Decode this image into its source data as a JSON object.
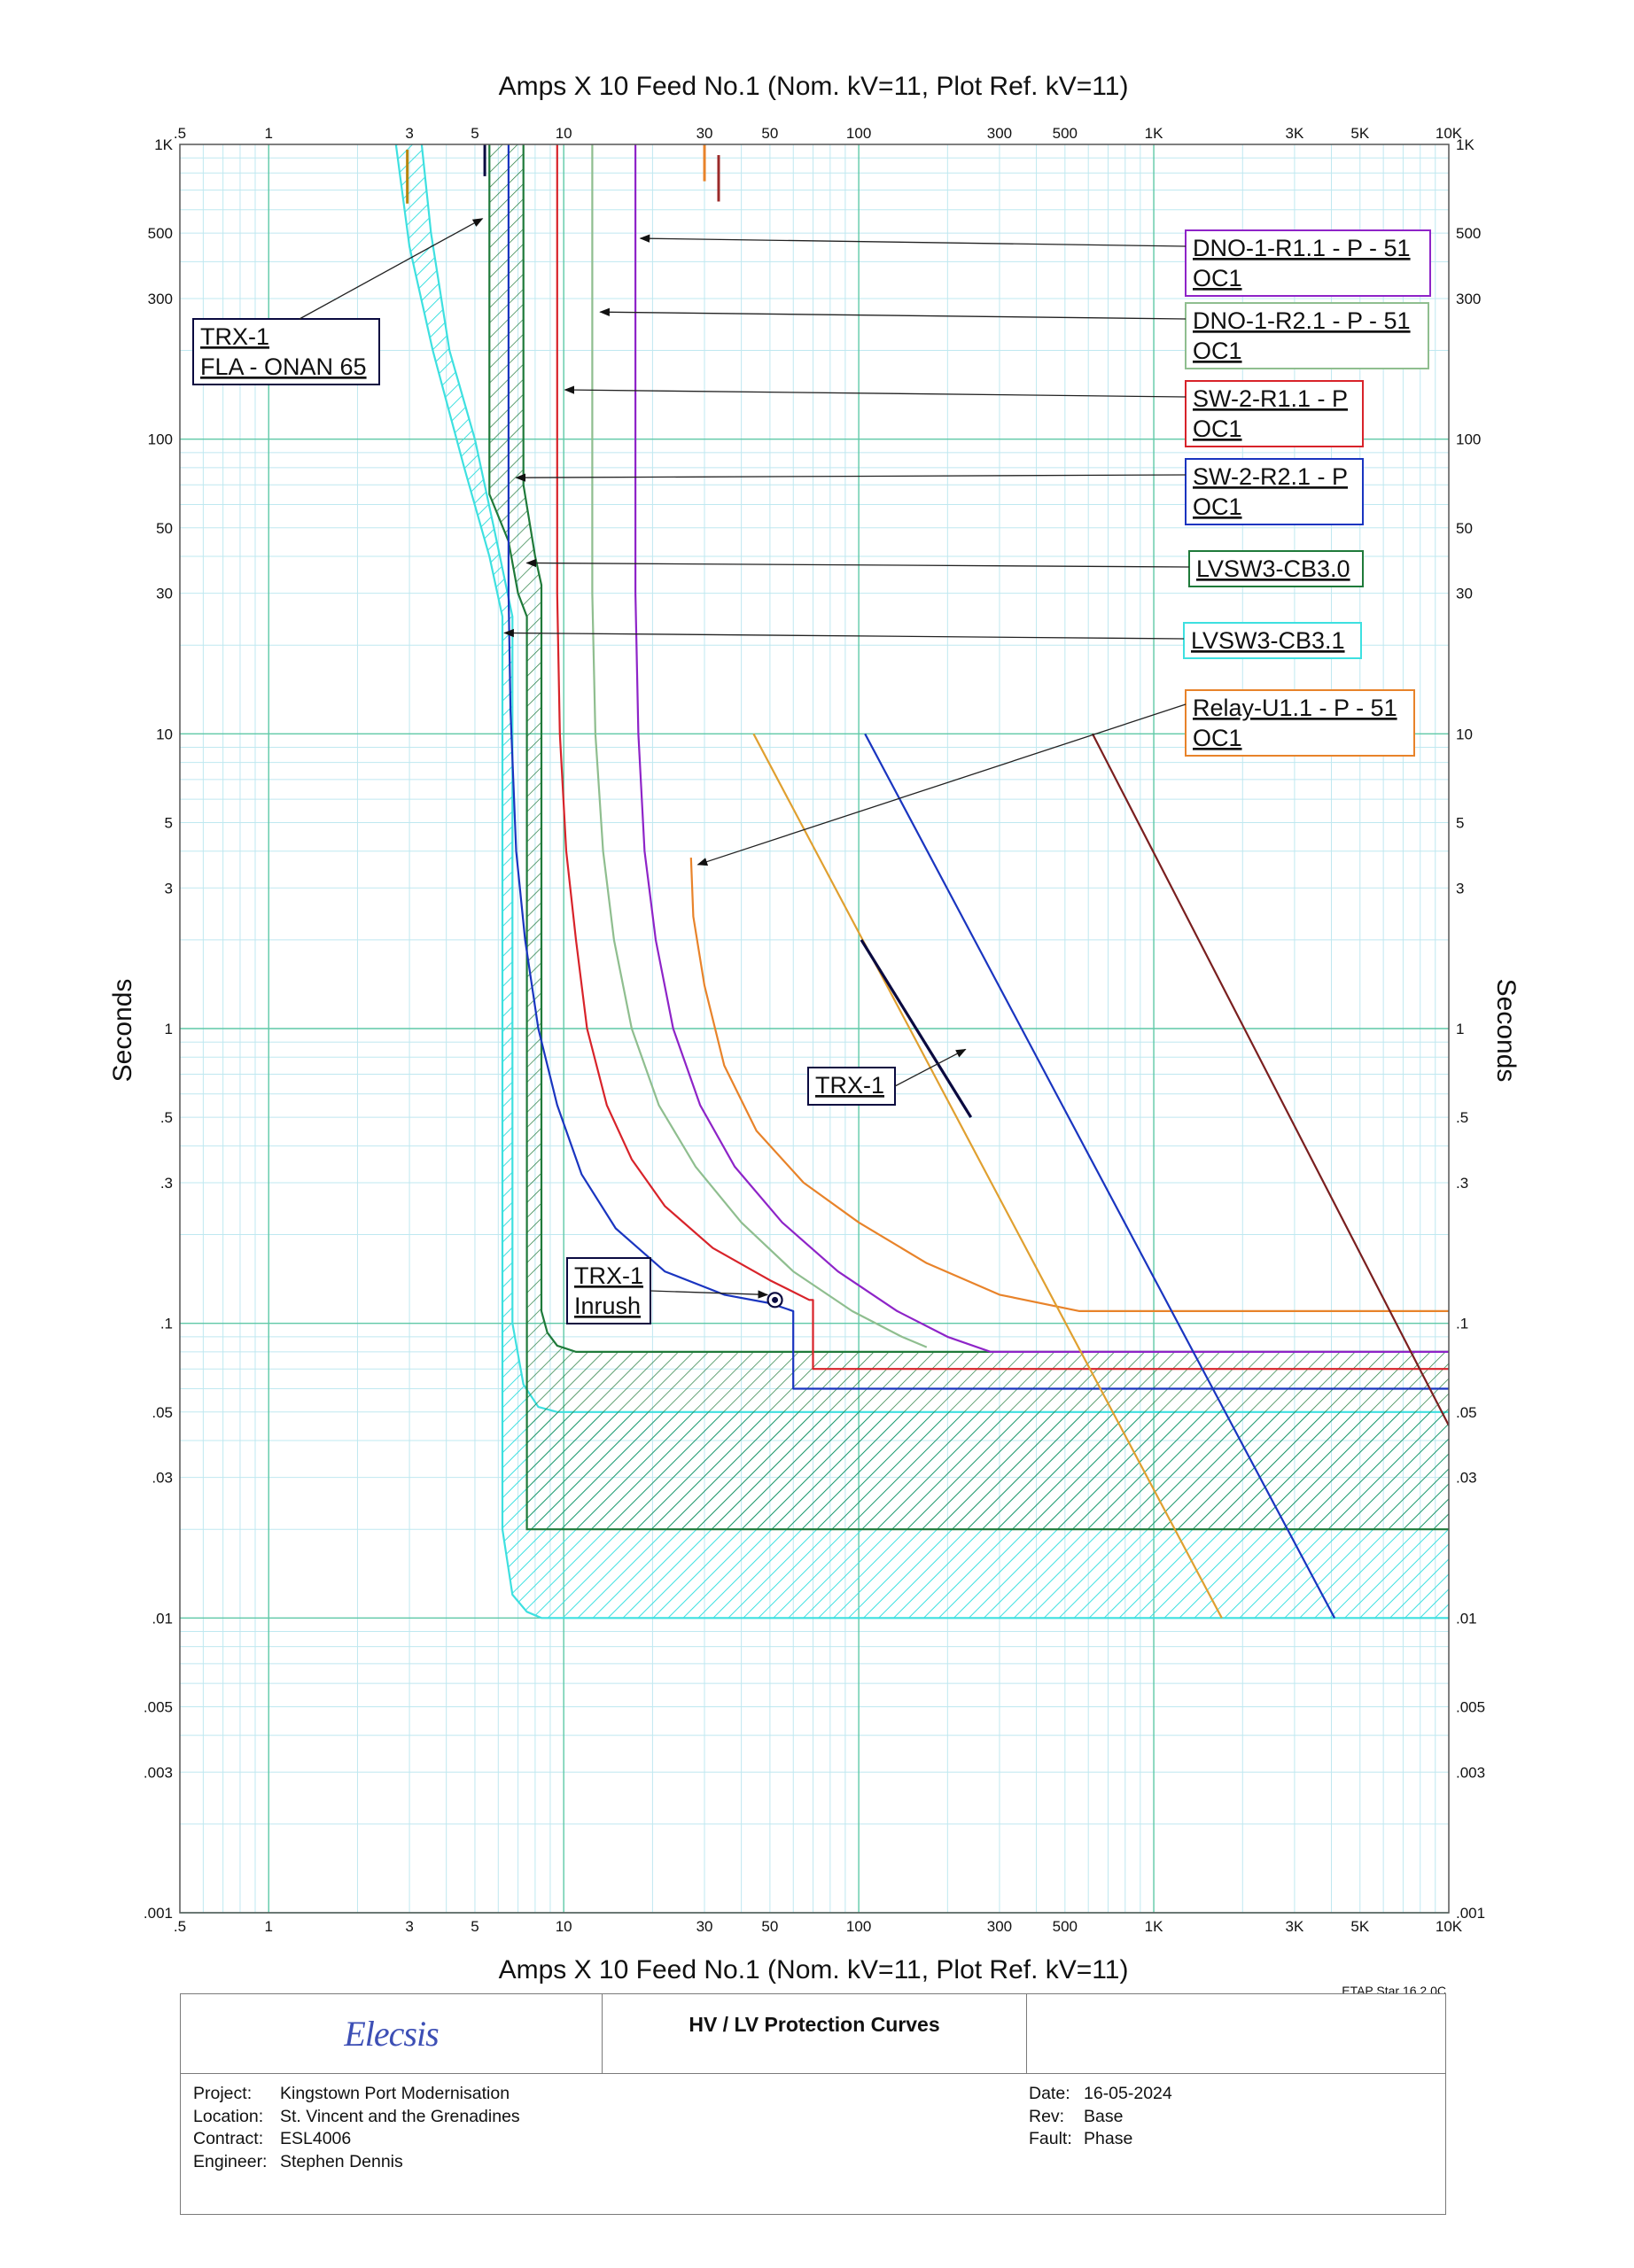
{
  "chart_data": {
    "type": "line",
    "title": "Amps  X  10   Feed No.1 (Nom. kV=11, Plot Ref. kV=11)",
    "xlabel": "Amps  X  10   Feed No.1 (Nom. kV=11, Plot Ref. kV=11)",
    "ylabel": "Seconds",
    "x_scale": "log",
    "y_scale": "log",
    "xlim": [
      0.5,
      10000
    ],
    "ylim": [
      0.001,
      1000
    ],
    "grid": true,
    "x_ticks": [
      {
        "v": 0.5,
        "t": ".5"
      },
      {
        "v": 1,
        "t": "1"
      },
      {
        "v": 3,
        "t": "3"
      },
      {
        "v": 5,
        "t": "5"
      },
      {
        "v": 10,
        "t": "10"
      },
      {
        "v": 30,
        "t": "30"
      },
      {
        "v": 50,
        "t": "50"
      },
      {
        "v": 100,
        "t": "100"
      },
      {
        "v": 300,
        "t": "300"
      },
      {
        "v": 500,
        "t": "500"
      },
      {
        "v": 1000,
        "t": "1K"
      },
      {
        "v": 3000,
        "t": "3K"
      },
      {
        "v": 5000,
        "t": "5K"
      },
      {
        "v": 10000,
        "t": "10K"
      }
    ],
    "y_ticks": [
      {
        "v": 0.001,
        "t": ".001"
      },
      {
        "v": 0.003,
        "t": ".003"
      },
      {
        "v": 0.005,
        "t": ".005"
      },
      {
        "v": 0.01,
        "t": ".01"
      },
      {
        "v": 0.03,
        "t": ".03"
      },
      {
        "v": 0.05,
        "t": ".05"
      },
      {
        "v": 0.1,
        "t": ".1"
      },
      {
        "v": 0.3,
        "t": ".3"
      },
      {
        "v": 0.5,
        "t": ".5"
      },
      {
        "v": 1,
        "t": "1"
      },
      {
        "v": 3,
        "t": "3"
      },
      {
        "v": 5,
        "t": "5"
      },
      {
        "v": 10,
        "t": "10"
      },
      {
        "v": 30,
        "t": "30"
      },
      {
        "v": 50,
        "t": "50"
      },
      {
        "v": 100,
        "t": "100"
      },
      {
        "v": 300,
        "t": "300"
      },
      {
        "v": 500,
        "t": "500"
      },
      {
        "v": 1000,
        "t": "1K"
      }
    ],
    "bands": [
      {
        "name": "LVSW3-CB3.1",
        "color": "#3ee0e0",
        "outer": [
          [
            2.7,
            1000
          ],
          [
            3.0,
            450
          ],
          [
            3.6,
            200
          ],
          [
            4.6,
            80
          ],
          [
            5.6,
            40
          ],
          [
            6.2,
            25
          ],
          [
            6.2,
            0.02
          ],
          [
            6.7,
            0.012
          ],
          [
            7.5,
            0.0105
          ],
          [
            8.4,
            0.01
          ],
          [
            10000,
            0.01
          ]
        ],
        "inner": [
          [
            3.3,
            1000
          ],
          [
            3.55,
            500
          ],
          [
            4.1,
            200
          ],
          [
            5.0,
            100
          ],
          [
            5.8,
            50
          ],
          [
            6.7,
            25
          ],
          [
            6.7,
            0.1
          ],
          [
            7.3,
            0.062
          ],
          [
            8.2,
            0.052
          ],
          [
            9.5,
            0.05
          ],
          [
            10000,
            0.05
          ]
        ]
      },
      {
        "name": "LVSW3-CB3.0",
        "color": "#1f7a3a",
        "outer": [
          [
            5.6,
            1000
          ],
          [
            5.6,
            65
          ],
          [
            6.5,
            45
          ],
          [
            7.0,
            30
          ],
          [
            7.5,
            25
          ],
          [
            7.5,
            0.02
          ],
          [
            10000,
            0.02
          ]
        ],
        "inner": [
          [
            7.3,
            1000
          ],
          [
            7.3,
            70
          ],
          [
            8.0,
            40
          ],
          [
            8.4,
            32
          ],
          [
            8.4,
            0.11
          ],
          [
            8.8,
            0.093
          ],
          [
            9.5,
            0.084
          ],
          [
            11,
            0.08
          ],
          [
            10000,
            0.08
          ]
        ]
      }
    ],
    "series": [
      {
        "name": "SW-2-R2.1 - P",
        "color": "#1a35c0",
        "values": [
          [
            6.5,
            1000
          ],
          [
            6.5,
            30
          ],
          [
            6.6,
            12
          ],
          [
            6.9,
            4
          ],
          [
            7.4,
            2
          ],
          [
            8.2,
            1
          ],
          [
            9.5,
            0.55
          ],
          [
            11.5,
            0.32
          ],
          [
            15,
            0.21
          ],
          [
            22,
            0.15
          ],
          [
            35,
            0.125
          ],
          [
            50,
            0.117
          ],
          [
            60,
            0.11
          ],
          [
            60,
            0.06
          ],
          [
            10000,
            0.06
          ]
        ]
      },
      {
        "name": "SW-2-R1.1 - P",
        "color": "#d8232a",
        "values": [
          [
            9.5,
            1000
          ],
          [
            9.5,
            30
          ],
          [
            9.7,
            10
          ],
          [
            10.2,
            4
          ],
          [
            11,
            2
          ],
          [
            12,
            1
          ],
          [
            14,
            0.55
          ],
          [
            17,
            0.36
          ],
          [
            22,
            0.25
          ],
          [
            32,
            0.18
          ],
          [
            50,
            0.14
          ],
          [
            68,
            0.12
          ],
          [
            70,
            0.12
          ],
          [
            70,
            0.07
          ],
          [
            10000,
            0.07
          ]
        ]
      },
      {
        "name": "DNO-1-R2.1 - P - 51",
        "color": "#8fbe8f",
        "values": [
          [
            12.5,
            1000
          ],
          [
            12.5,
            30
          ],
          [
            12.8,
            10
          ],
          [
            13.6,
            4
          ],
          [
            14.8,
            2
          ],
          [
            17,
            1
          ],
          [
            21,
            0.55
          ],
          [
            28,
            0.34
          ],
          [
            40,
            0.22
          ],
          [
            60,
            0.15
          ],
          [
            95,
            0.11
          ],
          [
            140,
            0.09
          ],
          [
            170,
            0.083
          ]
        ]
      },
      {
        "name": "DNO-1-R1.1 - P - 51",
        "color": "#8e24c8",
        "values": [
          [
            17.5,
            1000
          ],
          [
            17.5,
            30
          ],
          [
            17.9,
            10
          ],
          [
            18.8,
            4
          ],
          [
            20.5,
            2
          ],
          [
            23.5,
            1
          ],
          [
            29,
            0.55
          ],
          [
            38,
            0.34
          ],
          [
            55,
            0.22
          ],
          [
            85,
            0.15
          ],
          [
            135,
            0.11
          ],
          [
            200,
            0.09
          ],
          [
            280,
            0.08
          ],
          [
            10000,
            0.08
          ]
        ]
      },
      {
        "name": "Relay-U1.1 - P - 51 OC1",
        "color": "#e8832a",
        "values": [
          [
            27,
            3.8
          ],
          [
            27.5,
            2.4
          ],
          [
            30,
            1.4
          ],
          [
            35,
            0.75
          ],
          [
            45,
            0.45
          ],
          [
            65,
            0.3
          ],
          [
            100,
            0.22
          ],
          [
            170,
            0.16
          ],
          [
            300,
            0.125
          ],
          [
            560,
            0.11
          ],
          [
            10000,
            0.11
          ]
        ]
      },
      {
        "name": "",
        "color": "#e0a030",
        "values": [
          [
            44,
            10
          ],
          [
            1700,
            0.01
          ]
        ]
      },
      {
        "name": "",
        "color": "#1a35c0",
        "values": [
          [
            105,
            10
          ],
          [
            4100,
            0.01
          ]
        ]
      },
      {
        "name": "",
        "color": "#7a1f1f",
        "values": [
          [
            620,
            10
          ],
          [
            10000,
            0.045
          ]
        ]
      },
      {
        "name": "TRX-1",
        "color": "#0a0a40",
        "values": [
          [
            102,
            2
          ],
          [
            240,
            0.5
          ]
        ]
      }
    ],
    "markers": [
      {
        "name": "TRX-1 FLA - ONAN 65",
        "color": "#0a0a40",
        "x": 5.4,
        "y1": 1000,
        "y2": 780
      },
      {
        "name": "",
        "color": "#b8860b",
        "x": 2.95,
        "y1": 960,
        "y2": 630
      },
      {
        "name": "",
        "color": "#e8832a",
        "x": 30,
        "y1": 1000,
        "y2": 750
      },
      {
        "name": "",
        "color": "#9b2a2a",
        "x": 33.5,
        "y1": 920,
        "y2": 640
      }
    ],
    "inrush_point": {
      "name": "TRX-1 Inrush",
      "x": 52,
      "y": 0.12,
      "color": "#0a0a40"
    },
    "annotations": [
      {
        "lines": [
          "DNO-1-R1.1 - P - 51",
          "OC1"
        ],
        "color": "#8e24c8",
        "arrow_to": [
          18.2,
          480
        ]
      },
      {
        "lines": [
          "DNO-1-R2.1 - P - 51",
          "OC1"
        ],
        "color": "#8fbe8f",
        "arrow_to": [
          13.3,
          270
        ]
      },
      {
        "lines": [
          "SW-2-R1.1 - P",
          "OC1"
        ],
        "color": "#d8232a",
        "arrow_to": [
          10.1,
          147
        ]
      },
      {
        "lines": [
          "SW-2-R2.1 - P",
          "OC1"
        ],
        "color": "#1a35c0",
        "arrow_to": [
          6.9,
          74
        ]
      },
      {
        "lines": [
          "LVSW3-CB3.0"
        ],
        "color": "#1f7a3a",
        "arrow_to": [
          7.5,
          38
        ]
      },
      {
        "lines": [
          "LVSW3-CB3.1"
        ],
        "color": "#3ee0e0",
        "arrow_to": [
          6.3,
          22
        ]
      },
      {
        "lines": [
          "Relay-U1.1 - P - 51",
          "OC1"
        ],
        "color": "#e8832a",
        "arrow_to": [
          28.5,
          3.6
        ]
      },
      {
        "lines": [
          "TRX-1",
          "FLA - ONAN 65"
        ],
        "color": "#0a0a40",
        "arrow_to": [
          5.3,
          560
        ]
      },
      {
        "lines": [
          "TRX-1"
        ],
        "color": "#0a0a40",
        "arrow_to": [
          230,
          0.85
        ]
      },
      {
        "lines": [
          "TRX-1",
          "Inrush"
        ],
        "color": "#0a0a40",
        "arrow_to": [
          49,
          0.125
        ]
      }
    ],
    "version": "ETAP Star 16.2.0C"
  },
  "titleblock": {
    "logo": "Elecsis",
    "title": "HV / LV Protection Curves",
    "project_label": "Project:",
    "project": "Kingstown Port Modernisation",
    "location_label": "Location:",
    "location": "St. Vincent and the Grenadines",
    "contract_label": "Contract:",
    "contract": "ESL4006",
    "engineer_label": "Engineer:",
    "engineer": "Stephen Dennis",
    "date_label": "Date:",
    "date": "16-05-2024",
    "rev_label": "Rev:",
    "rev": "Base",
    "fault_label": "Fault:",
    "fault": "Phase"
  }
}
